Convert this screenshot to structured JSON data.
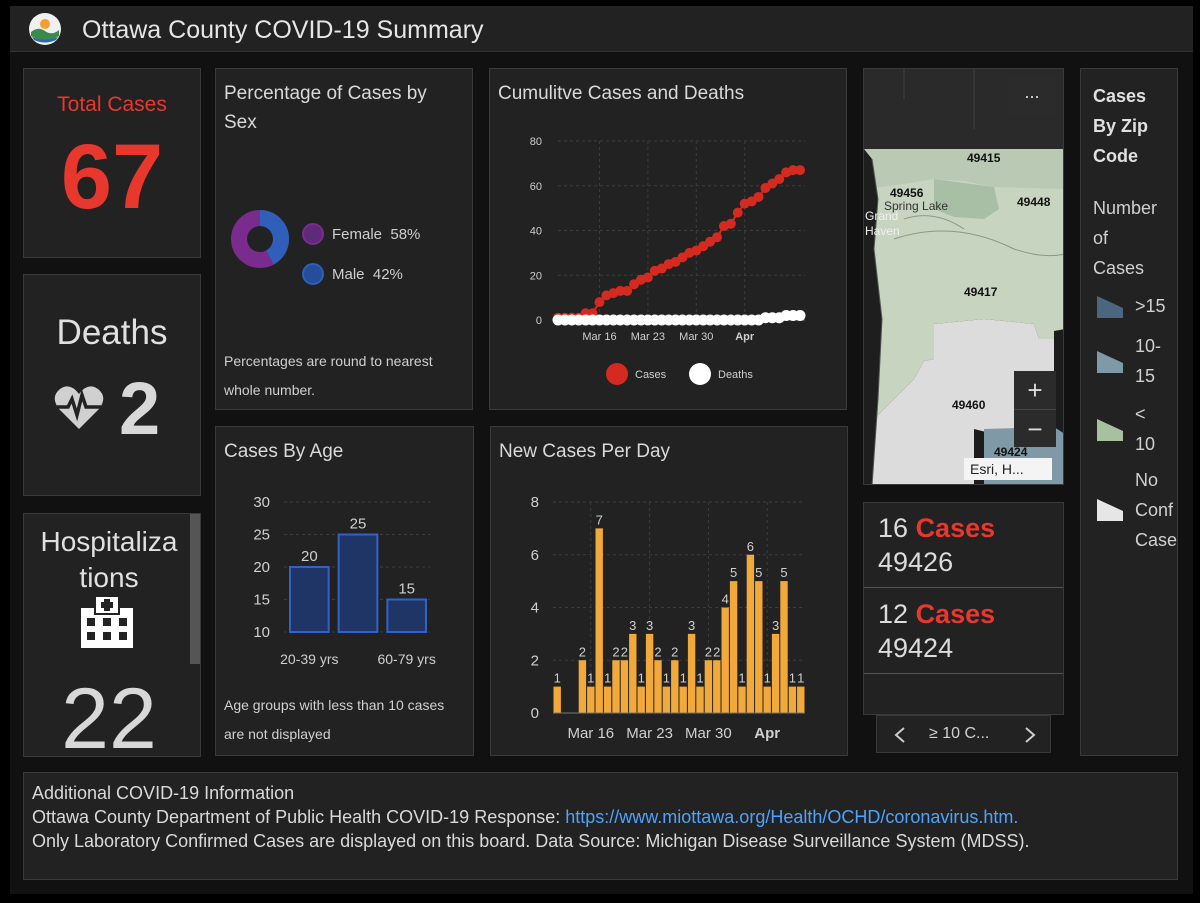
{
  "header": {
    "title": "Ottawa County COVID-19 Summary"
  },
  "total_cases": {
    "label": "Total Cases",
    "value": "67"
  },
  "deaths": {
    "label": "Deaths",
    "value": "2"
  },
  "hospitalizations": {
    "label_line1": "Hospitaliza",
    "label_line2": "tions",
    "value": "22"
  },
  "sex": {
    "title": "Percentage of Cases by Sex",
    "female_label": "Female",
    "female_pct": "58%",
    "male_label": "Male",
    "male_pct": "42%",
    "note": "Percentages are round to nearest whole number.",
    "female_color": "#7a2b8e",
    "male_color": "#2f5fb8"
  },
  "cumulative": {
    "title": "Cumulitve Cases and Deaths",
    "legend_cases": "Cases",
    "legend_deaths": "Deaths"
  },
  "age": {
    "title": "Cases By Age",
    "note": "Age groups with less than 10 cases are not displayed"
  },
  "new_cases": {
    "title": "New Cases Per Day"
  },
  "map": {
    "zips": [
      "49415",
      "49456",
      "49448",
      "49417",
      "49460",
      "49424"
    ],
    "places": [
      "Spring Lake",
      "Grand",
      "Haven"
    ],
    "attribution": "Esri, H...",
    "menu": "...",
    "zoom_in": "+",
    "zoom_out": "−"
  },
  "zip_list": {
    "items": [
      {
        "count": "16",
        "word": "Cases",
        "zip": "49426"
      },
      {
        "count": "12",
        "word": "Cases",
        "zip": "49424"
      }
    ],
    "filter_label": "≥ 10 C..."
  },
  "zip_legend": {
    "title_lines": [
      "Cases",
      "By Zip",
      "Code"
    ],
    "sub_lines": [
      "Number",
      "of",
      "Cases"
    ],
    "items": [
      {
        "lines": [
          ">15"
        ],
        "color": "#4d6680"
      },
      {
        "lines": [
          "10-",
          "15"
        ],
        "color": "#7f9aa6"
      },
      {
        "lines": [
          "<",
          "10"
        ],
        "color": "#a6c0a0"
      },
      {
        "lines": [
          "No",
          "Conf",
          "Case"
        ],
        "color": "#e6e6e6"
      }
    ]
  },
  "footer": {
    "line1": "Additional COVID-19 Information",
    "line2_prefix": "Ottawa County Department of Public Health COVID-19 Response: ",
    "link": "https://www.miottawa.org/Health/OCHD/coronavirus.htm.",
    "line3": "Only Laboratory Confirmed Cases are displayed on this board. Data Source: Michigan Disease Surveillance System (MDSS)."
  },
  "chart_data": [
    {
      "type": "line",
      "title": "Cumulitve Cases and Deaths",
      "x_ticks": [
        "Mar 16",
        "Mar 23",
        "Mar 30",
        "Apr"
      ],
      "ylim": [
        0,
        80
      ],
      "y_ticks": [
        0,
        20,
        40,
        60,
        80
      ],
      "series": [
        {
          "name": "Cases",
          "color": "#d42a20",
          "values": [
            1,
            1,
            1,
            1,
            3,
            3,
            8,
            11,
            12,
            13,
            13,
            16,
            18,
            19,
            22,
            23,
            25,
            26,
            28,
            30,
            31,
            33,
            35,
            37,
            42,
            43,
            48,
            52,
            53,
            55,
            59,
            61,
            63,
            66,
            67,
            67
          ]
        },
        {
          "name": "Deaths",
          "color": "#ffffff",
          "values": [
            0,
            0,
            0,
            0,
            0,
            0,
            0,
            0,
            0,
            0,
            0,
            0,
            0,
            0,
            0,
            0,
            0,
            0,
            0,
            0,
            0,
            0,
            0,
            0,
            0,
            0,
            0,
            0,
            0,
            0,
            1,
            1,
            1,
            2,
            2,
            2
          ]
        }
      ]
    },
    {
      "type": "bar",
      "title": "Cases By Age",
      "categories": [
        "20-39 yrs",
        "40-59 yrs",
        "60-79 yrs"
      ],
      "x_tick_labels": [
        "20-39 yrs",
        "",
        "60-79 yrs"
      ],
      "values": [
        20,
        25,
        15
      ],
      "ylim": [
        10,
        30
      ],
      "y_ticks": [
        10,
        15,
        20,
        25,
        30
      ],
      "color": "#1f3566",
      "edge": "#2f63c9"
    },
    {
      "type": "bar",
      "title": "New Cases Per Day",
      "x_ticks": [
        "Mar 16",
        "Mar 23",
        "Mar 30",
        "Apr"
      ],
      "ylim": [
        0,
        8
      ],
      "y_ticks": [
        0,
        2,
        4,
        6,
        8
      ],
      "values": [
        1,
        0,
        0,
        2,
        1,
        7,
        1,
        2,
        2,
        3,
        1,
        3,
        2,
        1,
        2,
        1,
        3,
        1,
        2,
        2,
        4,
        5,
        1,
        6,
        5,
        1,
        3,
        5,
        1,
        1
      ],
      "color": "#f2a93b"
    }
  ]
}
